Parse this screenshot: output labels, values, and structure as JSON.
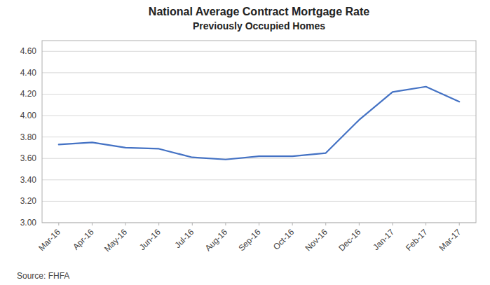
{
  "chart_data": {
    "type": "line",
    "title": "National Average Contract Mortgage Rate",
    "subtitle": "Previously Occupied Homes",
    "source": "Source:  FHFA",
    "categories": [
      "Mar-16",
      "Apr-16",
      "May-16",
      "Jun-16",
      "Jul-16",
      "Aug-16",
      "Sep-16",
      "Oct-16",
      "Nov-16",
      "Dec-16",
      "Jan-17",
      "Feb-17",
      "Mar-17"
    ],
    "values": [
      3.73,
      3.75,
      3.7,
      3.69,
      3.61,
      3.59,
      3.62,
      3.62,
      3.65,
      3.96,
      4.22,
      4.27,
      4.13
    ],
    "color": "#4472C4",
    "ylim": [
      3.0,
      4.7
    ],
    "yticks": [
      {
        "value": 3.0,
        "label": "3.00"
      },
      {
        "value": 3.2,
        "label": "3.20"
      },
      {
        "value": 3.4,
        "label": "3.40"
      },
      {
        "value": 3.6,
        "label": "3.60"
      },
      {
        "value": 3.8,
        "label": "3.80"
      },
      {
        "value": 4.0,
        "label": "4.00"
      },
      {
        "value": 4.2,
        "label": "4.20"
      },
      {
        "value": 4.4,
        "label": "4.40"
      },
      {
        "value": 4.6,
        "label": "4.60"
      }
    ],
    "grid": true
  }
}
